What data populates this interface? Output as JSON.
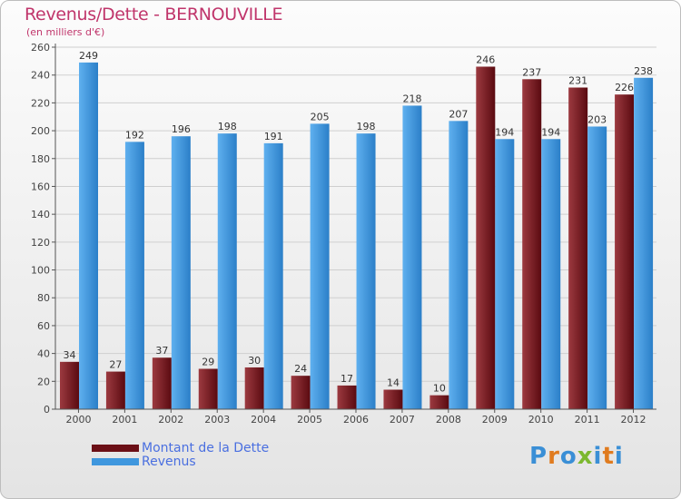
{
  "title": "Revenus/Dette - BERNOUVILLE",
  "unit_note": "(en milliers d'€)",
  "logo_text": "Proxiti",
  "colors": {
    "dette": "#6b0f16",
    "revenus": "#3f97de",
    "title": "#c0356b",
    "legend_text": "#4a6fe0"
  },
  "chart_data": {
    "type": "bar",
    "categories": [
      "2000",
      "2001",
      "2002",
      "2003",
      "2004",
      "2005",
      "2006",
      "2007",
      "2008",
      "2009",
      "2010",
      "2011",
      "2012"
    ],
    "series": [
      {
        "name": "Montant de la Dette",
        "values": [
          34,
          27,
          37,
          29,
          30,
          24,
          17,
          14,
          10,
          246,
          237,
          231,
          226
        ]
      },
      {
        "name": "Revenus",
        "values": [
          249,
          192,
          196,
          198,
          191,
          205,
          198,
          218,
          207,
          194,
          194,
          203,
          238
        ]
      }
    ],
    "ylim": [
      0,
      260
    ],
    "yticks": [
      0,
      20,
      40,
      60,
      80,
      100,
      120,
      140,
      160,
      180,
      200,
      220,
      240,
      260
    ],
    "grid": true,
    "legend_position": "bottom-left"
  }
}
